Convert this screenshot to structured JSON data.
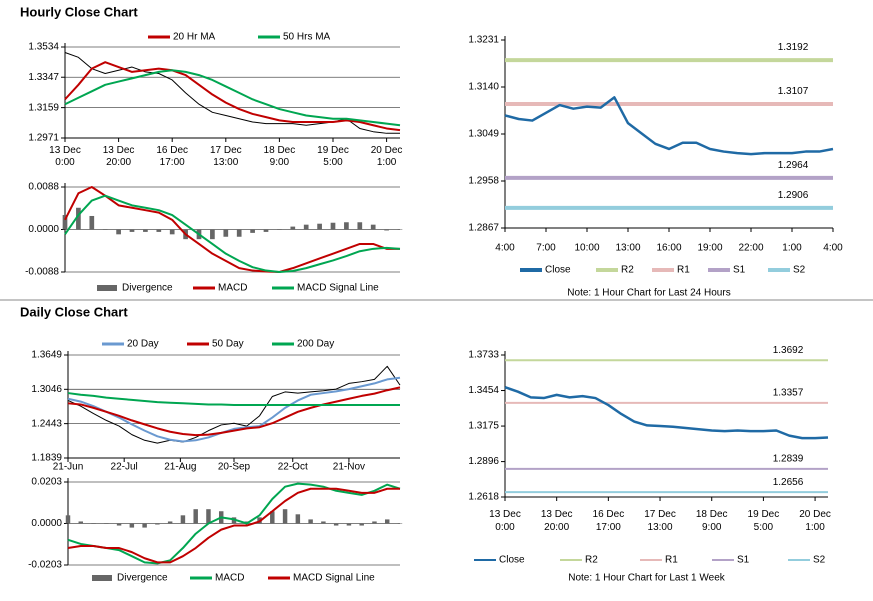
{
  "headings": [
    "Hourly Close Chart",
    "Daily Close Chart"
  ],
  "chart_data": [
    {
      "type": "line",
      "grid": true,
      "x": [
        0,
        5,
        10,
        15,
        20,
        25,
        30,
        35,
        40,
        45,
        50,
        55,
        60,
        65,
        70,
        75,
        80,
        85,
        90,
        95,
        100,
        105,
        110,
        115,
        120,
        125
      ],
      "xlim": [
        0,
        125
      ],
      "xticks": [
        {
          "value": 0,
          "label": [
            "13 Dec",
            "0:00"
          ]
        },
        {
          "value": 20,
          "label": [
            "13 Dec",
            "20:00"
          ]
        },
        {
          "value": 40,
          "label": [
            "16 Dec",
            "17:00"
          ]
        },
        {
          "value": 60,
          "label": [
            "17 Dec",
            "13:00"
          ]
        },
        {
          "value": 80,
          "label": [
            "18 Dec",
            "9:00"
          ]
        },
        {
          "value": 100,
          "label": [
            "19 Dec",
            "5:00"
          ]
        },
        {
          "value": 120,
          "label": [
            "20 Dec",
            "1:00"
          ]
        }
      ],
      "ylim": [
        1.2971,
        1.3534
      ],
      "yticks": [
        1.2971,
        1.3159,
        1.3347,
        1.3534
      ],
      "series": [
        {
          "color": "#000000",
          "values": [
            1.35,
            1.347,
            1.34,
            1.337,
            1.339,
            1.341,
            1.338,
            1.337,
            1.333,
            1.325,
            1.318,
            1.313,
            1.311,
            1.309,
            1.307,
            1.306,
            1.306,
            1.306,
            1.305,
            1.306,
            1.307,
            1.309,
            1.303,
            1.301,
            1.3,
            1.3
          ]
        },
        {
          "name": "20 Hr MA",
          "color": "#c00000",
          "values": [
            1.321,
            1.33,
            1.34,
            1.344,
            1.341,
            1.338,
            1.339,
            1.34,
            1.339,
            1.336,
            1.33,
            1.324,
            1.319,
            1.315,
            1.312,
            1.31,
            1.308,
            1.307,
            1.307,
            1.307,
            1.307,
            1.308,
            1.307,
            1.305,
            1.303,
            1.302
          ]
        },
        {
          "name": "50 Hrs MA",
          "color": "#00a651",
          "values": [
            1.318,
            1.322,
            1.326,
            1.33,
            1.332,
            1.334,
            1.336,
            1.338,
            1.339,
            1.338,
            1.336,
            1.333,
            1.329,
            1.325,
            1.321,
            1.318,
            1.315,
            1.313,
            1.311,
            1.31,
            1.309,
            1.309,
            1.308,
            1.307,
            1.306,
            1.305
          ]
        }
      ]
    },
    {
      "type": "line",
      "grid": true,
      "x": [
        0,
        5,
        10,
        15,
        20,
        25,
        30,
        35,
        40,
        45,
        50,
        55,
        60,
        65,
        70,
        75,
        80,
        85,
        90,
        95,
        100,
        105,
        110,
        115,
        120,
        125
      ],
      "xlim": [
        0,
        125
      ],
      "ylim": [
        -0.0088,
        0.0088
      ],
      "yticks": [
        -0.0088,
        {
          "value": 0,
          "label": "0.0000"
        },
        0.0088
      ],
      "series": [
        {
          "name": "Divergence",
          "kind": "bar",
          "color": "#666666",
          "values": [
            0.003,
            0.0045,
            0.0028,
            0,
            -0.001,
            -0.0005,
            -0.0005,
            -0.0005,
            -0.001,
            -0.002,
            -0.002,
            -0.002,
            -0.0015,
            -0.0015,
            -0.0007,
            -0.0005,
            0,
            0.0006,
            0.001,
            0.0012,
            0.0014,
            0.0015,
            0.0015,
            0.001,
            -0.0002,
            0
          ]
        },
        {
          "name": "MACD",
          "color": "#c00000",
          "values": [
            0.002,
            0.0075,
            0.0088,
            0.007,
            0.005,
            0.0045,
            0.004,
            0.0035,
            0.002,
            -0.001,
            -0.003,
            -0.005,
            -0.0065,
            -0.008,
            -0.0085,
            -0.0087,
            -0.0088,
            -0.008,
            -0.007,
            -0.006,
            -0.005,
            -0.004,
            -0.003,
            -0.003,
            -0.004,
            -0.004
          ]
        },
        {
          "name": "MACD Signal Line",
          "color": "#00a651",
          "values": [
            -0.001,
            0.003,
            0.006,
            0.007,
            0.006,
            0.005,
            0.0045,
            0.004,
            0.003,
            0.001,
            -0.001,
            -0.003,
            -0.005,
            -0.0065,
            -0.0078,
            -0.0085,
            -0.0088,
            -0.0086,
            -0.008,
            -0.0072,
            -0.0064,
            -0.0055,
            -0.0045,
            -0.004,
            -0.0038,
            -0.004
          ]
        }
      ]
    },
    {
      "type": "line",
      "grid": false,
      "x": [
        0,
        1,
        2,
        3,
        4,
        5,
        6,
        7,
        8,
        9,
        10,
        11,
        12,
        13,
        14,
        15,
        16,
        17,
        18,
        19,
        20,
        21,
        22,
        23,
        24
      ],
      "xlim": [
        0,
        24
      ],
      "xticks": [
        {
          "value": 0,
          "label": "4:00"
        },
        {
          "value": 3,
          "label": "7:00"
        },
        {
          "value": 6,
          "label": "10:00"
        },
        {
          "value": 9,
          "label": "13:00"
        },
        {
          "value": 12,
          "label": "16:00"
        },
        {
          "value": 15,
          "label": "19:00"
        },
        {
          "value": 18,
          "label": "22:00"
        },
        {
          "value": 21,
          "label": "1:00"
        },
        {
          "value": 24,
          "label": "4:00"
        }
      ],
      "ylim": [
        1.2867,
        1.3231
      ],
      "yticks": [
        1.2867,
        1.2958,
        1.3049,
        {
          "value": 1.314,
          "label": "1.3140"
        },
        1.3231
      ],
      "series": [
        {
          "name": "Close",
          "color": "#1f6aa5",
          "values": [
            1.3085,
            1.3078,
            1.3075,
            1.309,
            1.3105,
            1.3098,
            1.3102,
            1.31,
            1.312,
            1.307,
            1.305,
            1.303,
            1.302,
            1.3032,
            1.3032,
            1.302,
            1.3015,
            1.3012,
            1.301,
            1.3012,
            1.3012,
            1.3012,
            1.3015,
            1.3015,
            1.302
          ]
        }
      ],
      "levels": [
        {
          "name": "R2",
          "color": "#c4d79b",
          "value": 1.3192
        },
        {
          "name": "R1",
          "color": "#e6b9b8",
          "value": 1.3107
        },
        {
          "name": "S1",
          "color": "#b3a2c7",
          "value": 1.2964
        },
        {
          "name": "S2",
          "color": "#93cddd",
          "value": 1.2906
        }
      ],
      "note": "Note: 1 Hour Chart for Last 24 Hours"
    },
    {
      "type": "line",
      "grid": true,
      "x": [
        0,
        5,
        10,
        15,
        20,
        25,
        30,
        35,
        40,
        45,
        50,
        55,
        60,
        65,
        70,
        75,
        80,
        85,
        90,
        95,
        100,
        105,
        110,
        115,
        120,
        125,
        130
      ],
      "xlim": [
        0,
        130
      ],
      "xticks": [
        {
          "value": 0,
          "label": "21-Jun"
        },
        {
          "value": 22,
          "label": "22-Jul"
        },
        {
          "value": 44,
          "label": "21-Aug"
        },
        {
          "value": 65,
          "label": "20-Sep"
        },
        {
          "value": 88,
          "label": "22-Oct"
        },
        {
          "value": 110,
          "label": "21-Nov"
        }
      ],
      "ylim": [
        1.1839,
        1.3649
      ],
      "yticks": [
        1.1839,
        1.2443,
        1.3046,
        1.3649
      ],
      "series": [
        {
          "color": "#000000",
          "values": [
            1.285,
            1.275,
            1.262,
            1.25,
            1.24,
            1.225,
            1.215,
            1.21,
            1.215,
            1.212,
            1.22,
            1.232,
            1.242,
            1.245,
            1.24,
            1.258,
            1.292,
            1.3,
            1.298,
            1.3,
            1.302,
            1.305,
            1.315,
            1.318,
            1.322,
            1.345,
            1.312
          ]
        },
        {
          "name": "20 Day",
          "color": "#6a99d0",
          "values": [
            1.288,
            1.283,
            1.275,
            1.265,
            1.255,
            1.243,
            1.232,
            1.222,
            1.216,
            1.213,
            1.215,
            1.22,
            1.228,
            1.235,
            1.238,
            1.24,
            1.255,
            1.272,
            1.285,
            1.295,
            1.298,
            1.301,
            1.305,
            1.31,
            1.315,
            1.322,
            1.325
          ]
        },
        {
          "name": "50 Day",
          "color": "#c00000",
          "values": [
            1.28,
            1.278,
            1.272,
            1.265,
            1.258,
            1.25,
            1.243,
            1.236,
            1.23,
            1.226,
            1.224,
            1.225,
            1.228,
            1.232,
            1.236,
            1.238,
            1.245,
            1.255,
            1.265,
            1.272,
            1.278,
            1.283,
            1.288,
            1.293,
            1.297,
            1.303,
            1.308
          ]
        },
        {
          "name": "200 Day",
          "color": "#00a651",
          "values": [
            1.298,
            1.295,
            1.293,
            1.29,
            1.288,
            1.286,
            1.284,
            1.282,
            1.281,
            1.28,
            1.279,
            1.278,
            1.278,
            1.277,
            1.277,
            1.277,
            1.277,
            1.277,
            1.277,
            1.277,
            1.277,
            1.277,
            1.277,
            1.277,
            1.277,
            1.277,
            1.277
          ]
        }
      ]
    },
    {
      "type": "line",
      "grid": true,
      "x": [
        0,
        5,
        10,
        15,
        20,
        25,
        30,
        35,
        40,
        45,
        50,
        55,
        60,
        65,
        70,
        75,
        80,
        85,
        90,
        95,
        100,
        105,
        110,
        115,
        120,
        125,
        130
      ],
      "xlim": [
        0,
        130
      ],
      "ylim": [
        -0.0203,
        0.0203
      ],
      "yticks": [
        -0.0203,
        {
          "value": 0,
          "label": "0.0000"
        },
        0.0203
      ],
      "series": [
        {
          "name": "Divergence",
          "kind": "bar",
          "color": "#666666",
          "values": [
            0.004,
            0.001,
            0,
            0,
            -0.001,
            -0.002,
            -0.002,
            -0.0005,
            0.001,
            0.004,
            0.007,
            0.007,
            0.006,
            0.003,
            0.001,
            0.003,
            0.006,
            0.007,
            0.0045,
            0.002,
            0.001,
            -0.001,
            -0.001,
            -0.001,
            0.001,
            0.002,
            0
          ]
        },
        {
          "name": "MACD",
          "color": "#00a651",
          "values": [
            -0.008,
            -0.01,
            -0.011,
            -0.012,
            -0.013,
            -0.016,
            -0.019,
            -0.0195,
            -0.018,
            -0.012,
            -0.005,
            0,
            0.003,
            0.002,
            0,
            0.004,
            0.012,
            0.018,
            0.0195,
            0.019,
            0.018,
            0.016,
            0.015,
            0.014,
            0.016,
            0.019,
            0.017
          ]
        },
        {
          "name": "MACD Signal Line",
          "color": "#c00000",
          "values": [
            -0.012,
            -0.011,
            -0.011,
            -0.012,
            -0.012,
            -0.014,
            -0.017,
            -0.019,
            -0.019,
            -0.016,
            -0.012,
            -0.007,
            -0.003,
            -0.001,
            -0.001,
            0.001,
            0.006,
            0.011,
            0.015,
            0.017,
            0.017,
            0.017,
            0.016,
            0.015,
            0.015,
            0.017,
            0.017
          ]
        }
      ]
    },
    {
      "type": "line",
      "grid": false,
      "x": [
        0,
        5,
        10,
        15,
        20,
        25,
        30,
        35,
        40,
        45,
        50,
        55,
        60,
        65,
        70,
        75,
        80,
        85,
        90,
        95,
        100,
        105,
        110,
        115,
        120,
        125
      ],
      "xlim": [
        0,
        125
      ],
      "xticks": [
        {
          "value": 0,
          "label": [
            "13 Dec",
            "0:00"
          ]
        },
        {
          "value": 20,
          "label": [
            "13 Dec",
            "20:00"
          ]
        },
        {
          "value": 40,
          "label": [
            "16 Dec",
            "17:00"
          ]
        },
        {
          "value": 60,
          "label": [
            "17 Dec",
            "13:00"
          ]
        },
        {
          "value": 80,
          "label": [
            "18 Dec",
            "9:00"
          ]
        },
        {
          "value": 100,
          "label": [
            "19 Dec",
            "5:00"
          ]
        },
        {
          "value": 120,
          "label": [
            "20 Dec",
            "1:00"
          ]
        }
      ],
      "ylim": [
        1.2618,
        1.3733
      ],
      "yticks": [
        1.2618,
        1.2896,
        1.3175,
        1.3454,
        1.3733
      ],
      "series": [
        {
          "name": "Close",
          "color": "#1f6aa5",
          "values": [
            1.348,
            1.3445,
            1.34,
            1.3395,
            1.342,
            1.34,
            1.341,
            1.3395,
            1.334,
            1.327,
            1.321,
            1.318,
            1.3175,
            1.317,
            1.316,
            1.315,
            1.314,
            1.3135,
            1.314,
            1.3135,
            1.3135,
            1.314,
            1.31,
            1.308,
            1.308,
            1.3085
          ]
        }
      ],
      "levels": [
        {
          "name": "R2",
          "color": "#c4d79b",
          "value": 1.3692
        },
        {
          "name": "R1",
          "color": "#e6b9b8",
          "value": 1.3357
        },
        {
          "name": "S1",
          "color": "#b3a2c7",
          "value": 1.2839
        },
        {
          "name": "S2",
          "color": "#93cddd",
          "value": 1.2656
        }
      ],
      "note": "Note: 1 Hour Chart for Last 1 Week"
    }
  ]
}
